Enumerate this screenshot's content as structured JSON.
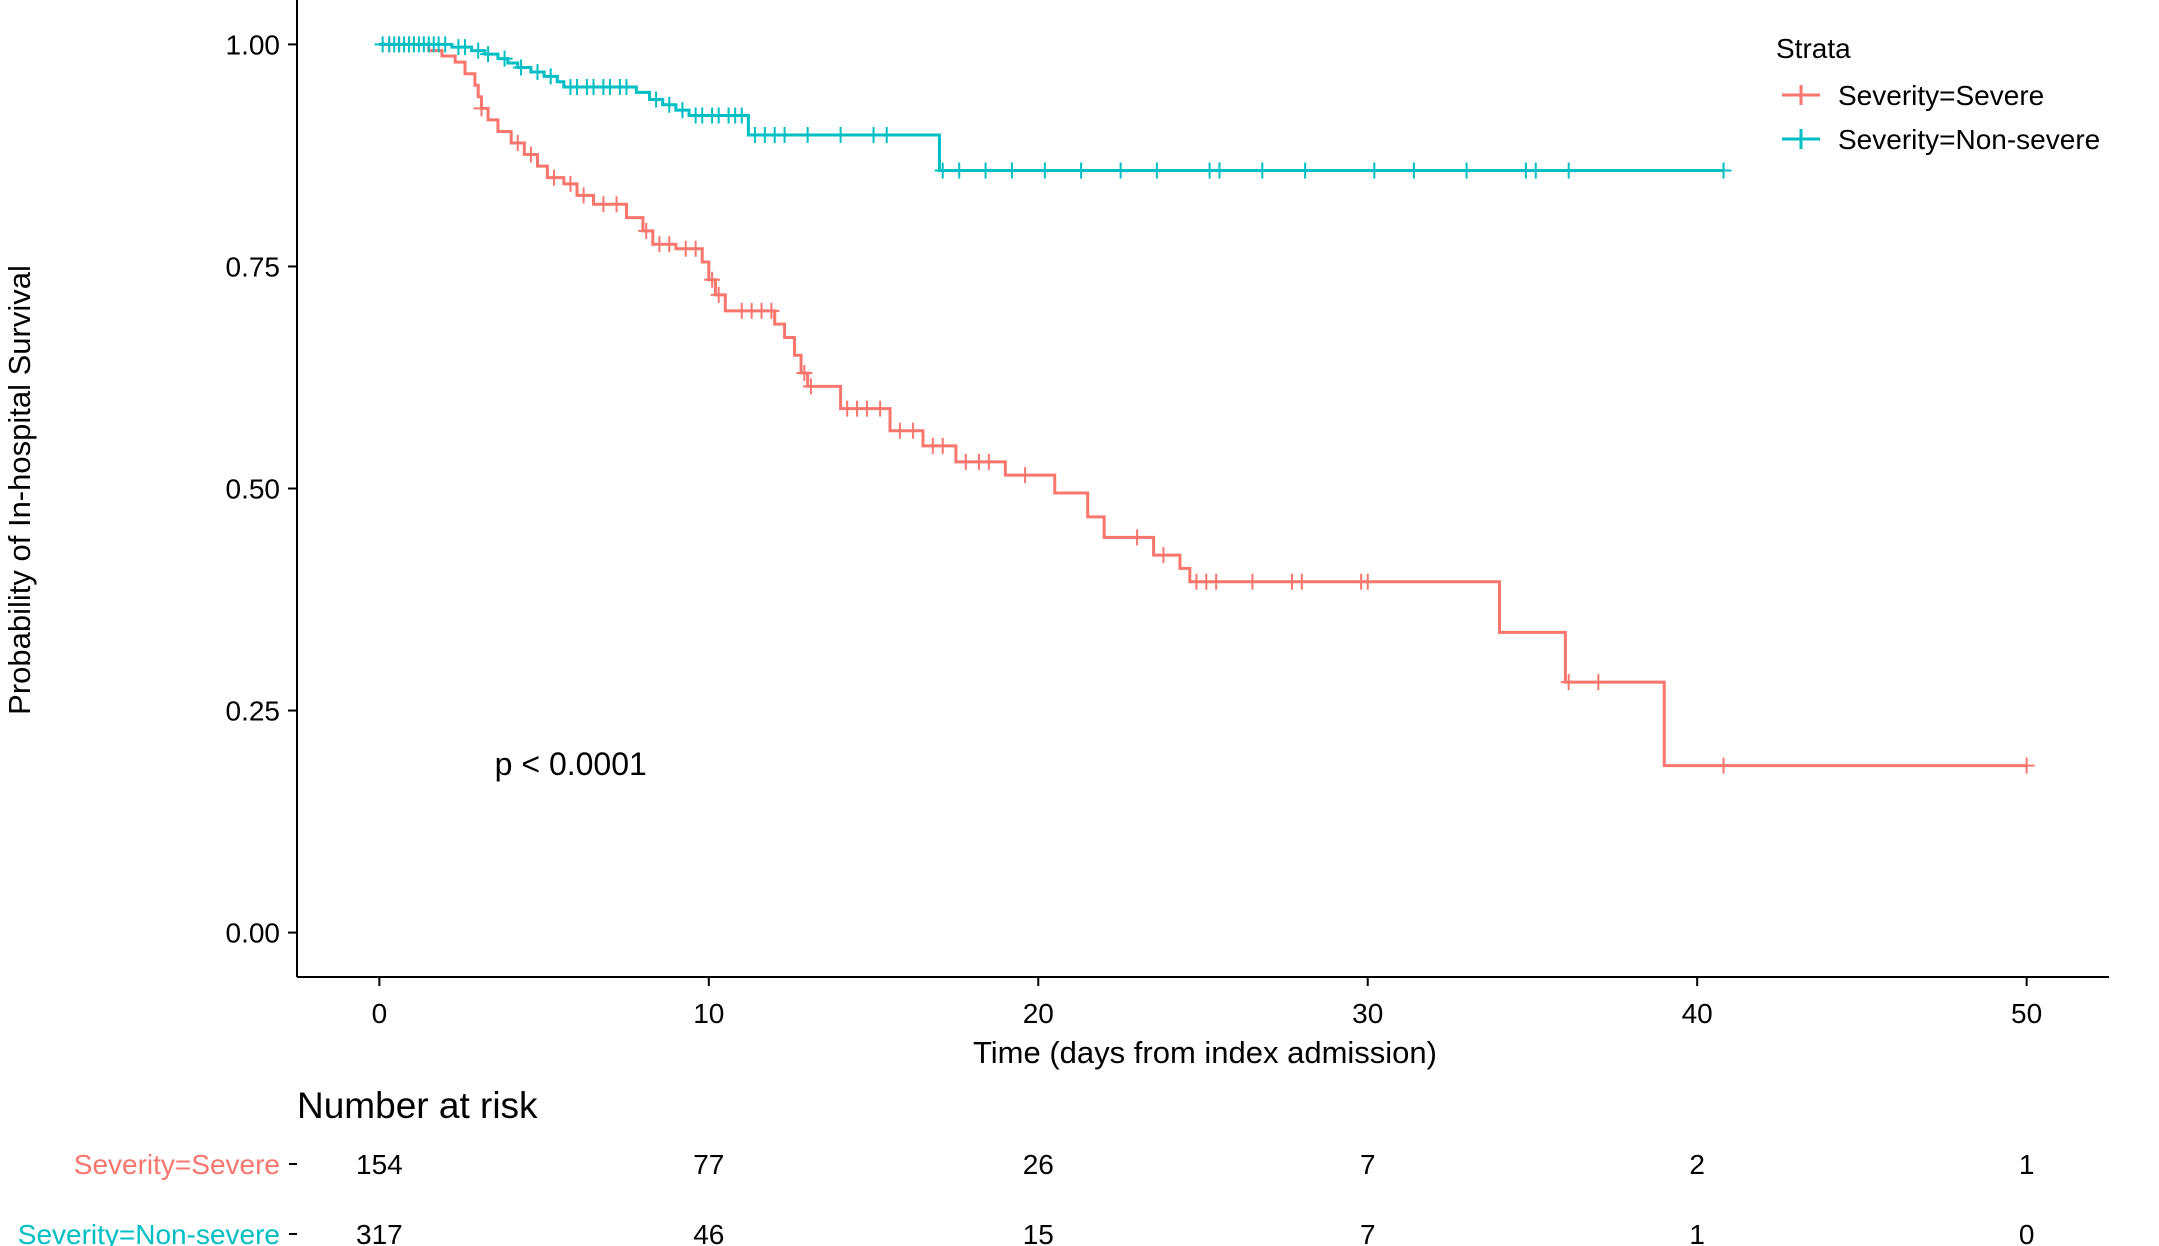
{
  "chart_data": {
    "type": "line",
    "subtype": "kaplan-meier",
    "ylabel": "Probability of In-hospital Survival",
    "xlabel": "Time (days from index admission)",
    "xlim": [
      -2.5,
      52.5
    ],
    "ylim": [
      -0.05,
      1.05
    ],
    "xticks": [
      0,
      10,
      20,
      30,
      40,
      50
    ],
    "xtick_labels": [
      "0",
      "10",
      "20",
      "30",
      "40",
      "50"
    ],
    "yticks": [
      0,
      0.25,
      0.5,
      0.75,
      1.0
    ],
    "ytick_labels": [
      "0.00",
      "0.25",
      "0.50",
      "0.75",
      "1.00"
    ],
    "grid": false,
    "annotation": "p < 0.0001",
    "annotation_pos": {
      "x": 3.5,
      "y": 0.19
    },
    "legend": {
      "title": "Strata",
      "position": "top-right",
      "entries": [
        "Severity=Severe",
        "Severity=Non-severe"
      ]
    },
    "series": [
      {
        "name": "Severity=Severe",
        "color": "#F8766D",
        "steps": [
          [
            0,
            1.0
          ],
          [
            1.5,
            0.993
          ],
          [
            1.9,
            0.987
          ],
          [
            2.3,
            0.98
          ],
          [
            2.6,
            0.967
          ],
          [
            2.9,
            0.954
          ],
          [
            3.0,
            0.941
          ],
          [
            3.1,
            0.928
          ],
          [
            3.3,
            0.915
          ],
          [
            3.6,
            0.902
          ],
          [
            4.0,
            0.889
          ],
          [
            4.4,
            0.876
          ],
          [
            4.8,
            0.863
          ],
          [
            5.1,
            0.85
          ],
          [
            5.6,
            0.843
          ],
          [
            6.0,
            0.83
          ],
          [
            6.5,
            0.82
          ],
          [
            7.5,
            0.805
          ],
          [
            8.0,
            0.79
          ],
          [
            8.3,
            0.775
          ],
          [
            9.0,
            0.77
          ],
          [
            9.8,
            0.755
          ],
          [
            10.0,
            0.735
          ],
          [
            10.2,
            0.718
          ],
          [
            10.5,
            0.7
          ],
          [
            12.0,
            0.685
          ],
          [
            12.3,
            0.67
          ],
          [
            12.6,
            0.65
          ],
          [
            12.8,
            0.63
          ],
          [
            13.0,
            0.615
          ],
          [
            14.0,
            0.59
          ],
          [
            15.5,
            0.565
          ],
          [
            16.5,
            0.548
          ],
          [
            17.5,
            0.53
          ],
          [
            19.0,
            0.515
          ],
          [
            20.5,
            0.495
          ],
          [
            21.5,
            0.468
          ],
          [
            22.0,
            0.445
          ],
          [
            23.5,
            0.425
          ],
          [
            24.3,
            0.41
          ],
          [
            24.6,
            0.395
          ],
          [
            34.0,
            0.338
          ],
          [
            36.0,
            0.282
          ],
          [
            39.0,
            0.188
          ]
        ],
        "end": 50.0,
        "censored": [
          [
            0.3,
            1.0
          ],
          [
            0.6,
            1.0
          ],
          [
            0.9,
            1.0
          ],
          [
            3.1,
            0.928
          ],
          [
            4.2,
            0.889
          ],
          [
            4.6,
            0.876
          ],
          [
            5.3,
            0.85
          ],
          [
            5.8,
            0.843
          ],
          [
            6.2,
            0.83
          ],
          [
            6.8,
            0.82
          ],
          [
            7.2,
            0.82
          ],
          [
            8.1,
            0.79
          ],
          [
            8.5,
            0.775
          ],
          [
            8.8,
            0.775
          ],
          [
            9.3,
            0.77
          ],
          [
            9.6,
            0.77
          ],
          [
            10.1,
            0.735
          ],
          [
            10.3,
            0.718
          ],
          [
            11.0,
            0.7
          ],
          [
            11.3,
            0.7
          ],
          [
            11.6,
            0.7
          ],
          [
            11.9,
            0.7
          ],
          [
            12.9,
            0.63
          ],
          [
            13.1,
            0.615
          ],
          [
            14.2,
            0.59
          ],
          [
            14.5,
            0.59
          ],
          [
            14.8,
            0.59
          ],
          [
            15.2,
            0.59
          ],
          [
            15.8,
            0.565
          ],
          [
            16.2,
            0.565
          ],
          [
            16.8,
            0.548
          ],
          [
            17.1,
            0.548
          ],
          [
            17.8,
            0.53
          ],
          [
            18.2,
            0.53
          ],
          [
            18.5,
            0.53
          ],
          [
            19.6,
            0.515
          ],
          [
            23.0,
            0.445
          ],
          [
            23.8,
            0.425
          ],
          [
            24.8,
            0.395
          ],
          [
            25.1,
            0.395
          ],
          [
            25.4,
            0.395
          ],
          [
            26.5,
            0.395
          ],
          [
            27.7,
            0.395
          ],
          [
            28.0,
            0.395
          ],
          [
            29.8,
            0.395
          ],
          [
            30.0,
            0.395
          ],
          [
            36.1,
            0.282
          ],
          [
            37.0,
            0.282
          ],
          [
            40.8,
            0.188
          ],
          [
            50.0,
            0.188
          ]
        ]
      },
      {
        "name": "Severity=Non-severe",
        "color": "#00BFC4",
        "steps": [
          [
            0,
            1.0
          ],
          [
            2.2,
            0.997
          ],
          [
            2.8,
            0.993
          ],
          [
            3.2,
            0.989
          ],
          [
            3.6,
            0.984
          ],
          [
            3.9,
            0.979
          ],
          [
            4.2,
            0.974
          ],
          [
            4.6,
            0.969
          ],
          [
            5.0,
            0.964
          ],
          [
            5.4,
            0.958
          ],
          [
            5.6,
            0.952
          ],
          [
            7.8,
            0.946
          ],
          [
            8.2,
            0.938
          ],
          [
            8.6,
            0.932
          ],
          [
            9.0,
            0.926
          ],
          [
            9.4,
            0.92
          ],
          [
            11.2,
            0.898
          ],
          [
            17.0,
            0.858
          ]
        ],
        "end": 40.8,
        "censored": [
          [
            0.1,
            1.0
          ],
          [
            0.3,
            1.0
          ],
          [
            0.45,
            1.0
          ],
          [
            0.6,
            1.0
          ],
          [
            0.75,
            1.0
          ],
          [
            0.9,
            1.0
          ],
          [
            1.05,
            1.0
          ],
          [
            1.2,
            1.0
          ],
          [
            1.35,
            1.0
          ],
          [
            1.5,
            1.0
          ],
          [
            1.65,
            1.0
          ],
          [
            1.8,
            1.0
          ],
          [
            2.0,
            1.0
          ],
          [
            2.4,
            0.997
          ],
          [
            2.6,
            0.997
          ],
          [
            3.0,
            0.993
          ],
          [
            3.3,
            0.989
          ],
          [
            3.8,
            0.984
          ],
          [
            4.3,
            0.974
          ],
          [
            4.8,
            0.969
          ],
          [
            5.2,
            0.964
          ],
          [
            5.8,
            0.952
          ],
          [
            6.0,
            0.952
          ],
          [
            6.3,
            0.952
          ],
          [
            6.5,
            0.952
          ],
          [
            6.8,
            0.952
          ],
          [
            7.0,
            0.952
          ],
          [
            7.3,
            0.952
          ],
          [
            7.5,
            0.952
          ],
          [
            8.4,
            0.938
          ],
          [
            8.8,
            0.932
          ],
          [
            9.2,
            0.926
          ],
          [
            9.6,
            0.92
          ],
          [
            9.8,
            0.92
          ],
          [
            10.1,
            0.92
          ],
          [
            10.3,
            0.92
          ],
          [
            10.6,
            0.92
          ],
          [
            10.8,
            0.92
          ],
          [
            11.0,
            0.92
          ],
          [
            11.4,
            0.898
          ],
          [
            11.7,
            0.898
          ],
          [
            12.0,
            0.898
          ],
          [
            12.3,
            0.898
          ],
          [
            13.0,
            0.898
          ],
          [
            14.0,
            0.898
          ],
          [
            15.0,
            0.898
          ],
          [
            15.4,
            0.898
          ],
          [
            17.1,
            0.858
          ],
          [
            17.6,
            0.858
          ],
          [
            18.4,
            0.858
          ],
          [
            19.2,
            0.858
          ],
          [
            20.2,
            0.858
          ],
          [
            21.3,
            0.858
          ],
          [
            22.5,
            0.858
          ],
          [
            23.6,
            0.858
          ],
          [
            25.2,
            0.858
          ],
          [
            25.5,
            0.858
          ],
          [
            26.8,
            0.858
          ],
          [
            28.1,
            0.858
          ],
          [
            30.2,
            0.858
          ],
          [
            31.4,
            0.858
          ],
          [
            33.0,
            0.858
          ],
          [
            34.8,
            0.858
          ],
          [
            35.1,
            0.858
          ],
          [
            36.1,
            0.858
          ],
          [
            40.8,
            0.858
          ]
        ]
      }
    ]
  },
  "risk_table": {
    "title": "Number at risk",
    "times": [
      0,
      10,
      20,
      30,
      40,
      50
    ],
    "rows": [
      {
        "label": "Severity=Severe",
        "color": "#F8766D",
        "counts": [
          "154",
          "77",
          "26",
          "7",
          "2",
          "1"
        ]
      },
      {
        "label": "Severity=Non-severe",
        "color": "#00BFC4",
        "counts": [
          "317",
          "46",
          "15",
          "7",
          "1",
          "0"
        ]
      }
    ]
  }
}
